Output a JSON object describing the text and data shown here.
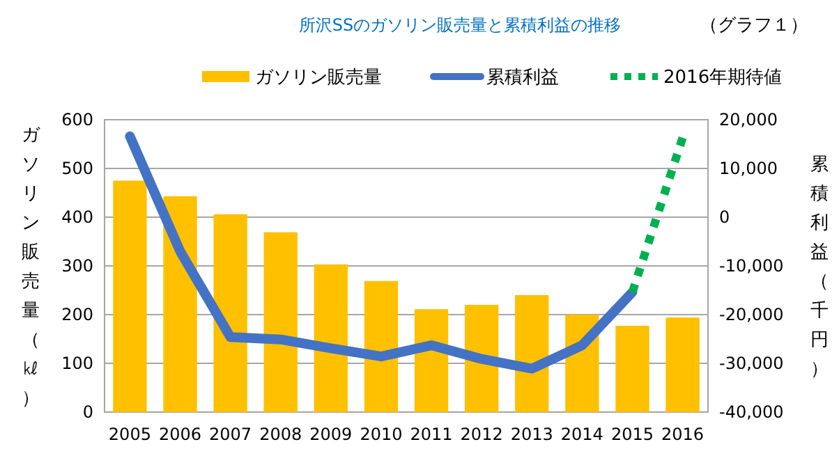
{
  "chart_data": {
    "type": "bar",
    "title": "所沢SSのガソリン販売量と累積利益の推移",
    "annotations": [
      "（グラフ１）"
    ],
    "ylabel": "ガソリン販売量（㎘）",
    "y2label": "累積利益（千円）",
    "categories": [
      "2005",
      "2006",
      "2007",
      "2008",
      "2009",
      "2010",
      "2011",
      "2012",
      "2013",
      "2014",
      "2015",
      "2016"
    ],
    "series": [
      {
        "name": "ガソリン販売量",
        "color": "#ffc000",
        "values": [
          475,
          443,
          406,
          369,
          303,
          269,
          211,
          220,
          240,
          200,
          177,
          194
        ]
      },
      {
        "name": "累積利益",
        "type": "line",
        "axis": "y2",
        "color": "#4472c4",
        "line_style": "solid",
        "values": [
          16600,
          -7000,
          -24600,
          -25100,
          -26900,
          -28600,
          -26300,
          -29100,
          -31100,
          -26300,
          -15400,
          null
        ]
      },
      {
        "name": "2016年期待値",
        "type": "line",
        "axis": "y2",
        "color": "#00b050",
        "line_style": "dotted",
        "values": [
          null,
          null,
          null,
          null,
          null,
          null,
          null,
          null,
          null,
          null,
          -15400,
          16300
        ]
      }
    ],
    "ylim": [
      0,
      600
    ],
    "yticks": [
      0,
      100,
      200,
      300,
      400,
      500,
      600
    ],
    "y2lim": [
      -40000,
      20000
    ],
    "y2ticks": [
      {
        "value": -40000,
        "label": "-40,000"
      },
      {
        "value": -30000,
        "label": "-30,000"
      },
      {
        "value": -20000,
        "label": "-20,000"
      },
      {
        "value": -10000,
        "label": "-10,000"
      },
      0,
      {
        "value": 10000,
        "label": "10,000"
      },
      {
        "value": 20000,
        "label": "20,000"
      }
    ],
    "grid": "y",
    "legend": "top",
    "marker": "none"
  }
}
